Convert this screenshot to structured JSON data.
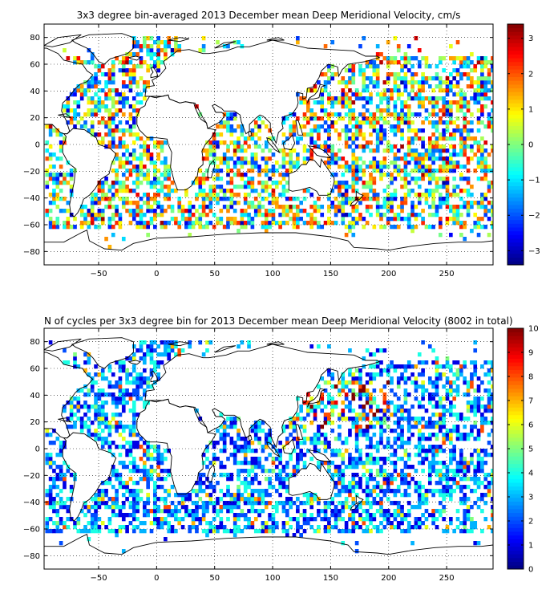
{
  "chart_data": [
    {
      "type": "heatmap",
      "title": "3x3 degree bin-averaged 2013 December mean Deep Meridional Velocity, cm/s",
      "x_ticks": [
        -50,
        0,
        50,
        100,
        150,
        200,
        250
      ],
      "y_ticks": [
        80,
        60,
        40,
        20,
        0,
        -20,
        -40,
        -60,
        -80
      ],
      "xlim": [
        -97,
        290
      ],
      "ylim": [
        -90,
        90
      ],
      "colorbar": {
        "min": -3.4,
        "max": 3.4,
        "ticks": [
          3,
          2,
          1,
          0,
          -1,
          -2,
          -3
        ],
        "colormap": "jet"
      },
      "bin_size_deg": 3,
      "grid": "dotted",
      "value_pattern": "mixed positive and negative velocities, mostly within -3 to 3 cm/s, dense in ocean basins"
    },
    {
      "type": "heatmap",
      "title": "N of cycles per 3x3 degree bin for 2013 December mean Deep Meridional Velocity (8002 in total)",
      "x_ticks": [
        -50,
        0,
        50,
        100,
        150,
        200,
        250
      ],
      "y_ticks": [
        80,
        60,
        40,
        20,
        0,
        -20,
        -40,
        -60,
        -80
      ],
      "xlim": [
        -97,
        290
      ],
      "ylim": [
        -90,
        90
      ],
      "colorbar": {
        "min": 0,
        "max": 10,
        "ticks": [
          10,
          9,
          8,
          7,
          6,
          5,
          4,
          3,
          2,
          1,
          0
        ],
        "colormap": "jet"
      },
      "bin_size_deg": 3,
      "grid": "dotted",
      "value_pattern": "counts mostly 1 to 4, higher counts (6-10) in the northwest Pacific"
    }
  ]
}
